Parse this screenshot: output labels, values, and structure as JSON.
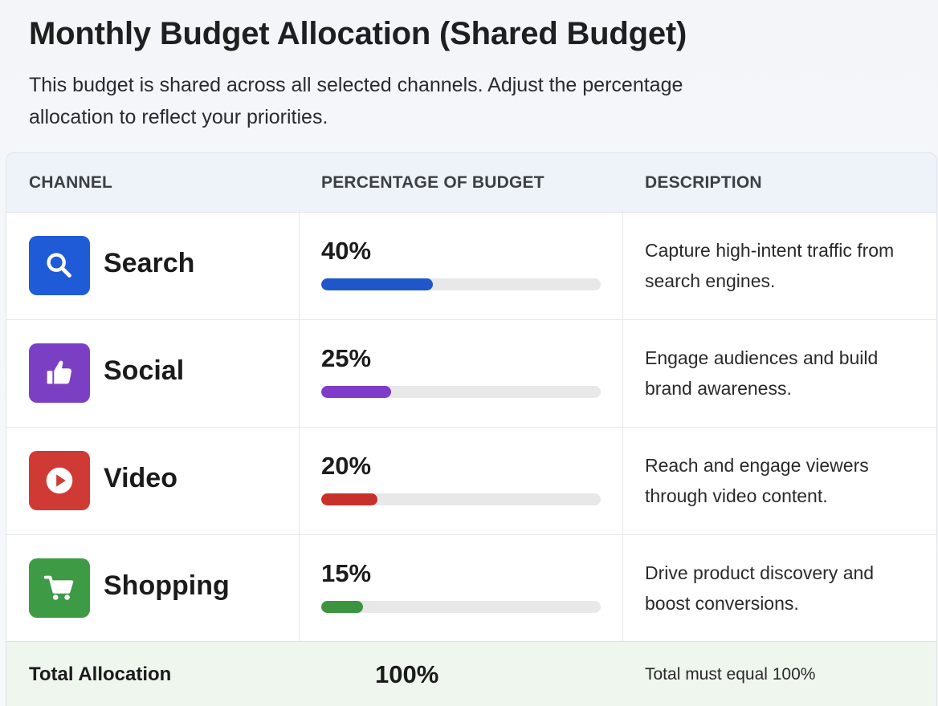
{
  "page": {
    "title": "Monthly Budget Allocation (Shared Budget)",
    "subtitle": "This budget is shared across all selected channels. Adjust the percentage allocation to reflect your priorities."
  },
  "table": {
    "headers": {
      "channel": "CHANNEL",
      "percentage": "PERCENTAGE OF BUDGET",
      "description": "DESCRIPTION"
    },
    "rows": [
      {
        "channel": "Search",
        "icon": "search-icon",
        "icon_color": "#1f5bd6",
        "percentage_label": "40%",
        "percentage": 40,
        "bar_color": "#1f56c9",
        "description": "Capture high-intent traffic from search engines."
      },
      {
        "channel": "Social",
        "icon": "thumbs-up-icon",
        "icon_color": "#7b3fc4",
        "percentage_label": "25%",
        "percentage": 25,
        "bar_color": "#7e3cc8",
        "description": "Engage audiences and build brand awareness."
      },
      {
        "channel": "Video",
        "icon": "play-icon",
        "icon_color": "#d03a34",
        "percentage_label": "20%",
        "percentage": 20,
        "bar_color": "#c8302c",
        "description": "Reach and engage viewers through video content."
      },
      {
        "channel": "Shopping",
        "icon": "shopping-cart-icon",
        "icon_color": "#3f9a46",
        "percentage_label": "15%",
        "percentage": 15,
        "bar_color": "#3d9440",
        "description": "Drive product discovery and boost conversions."
      }
    ],
    "total": {
      "label": "Total Allocation",
      "value": "100%",
      "note": "Total must equal 100%"
    }
  }
}
